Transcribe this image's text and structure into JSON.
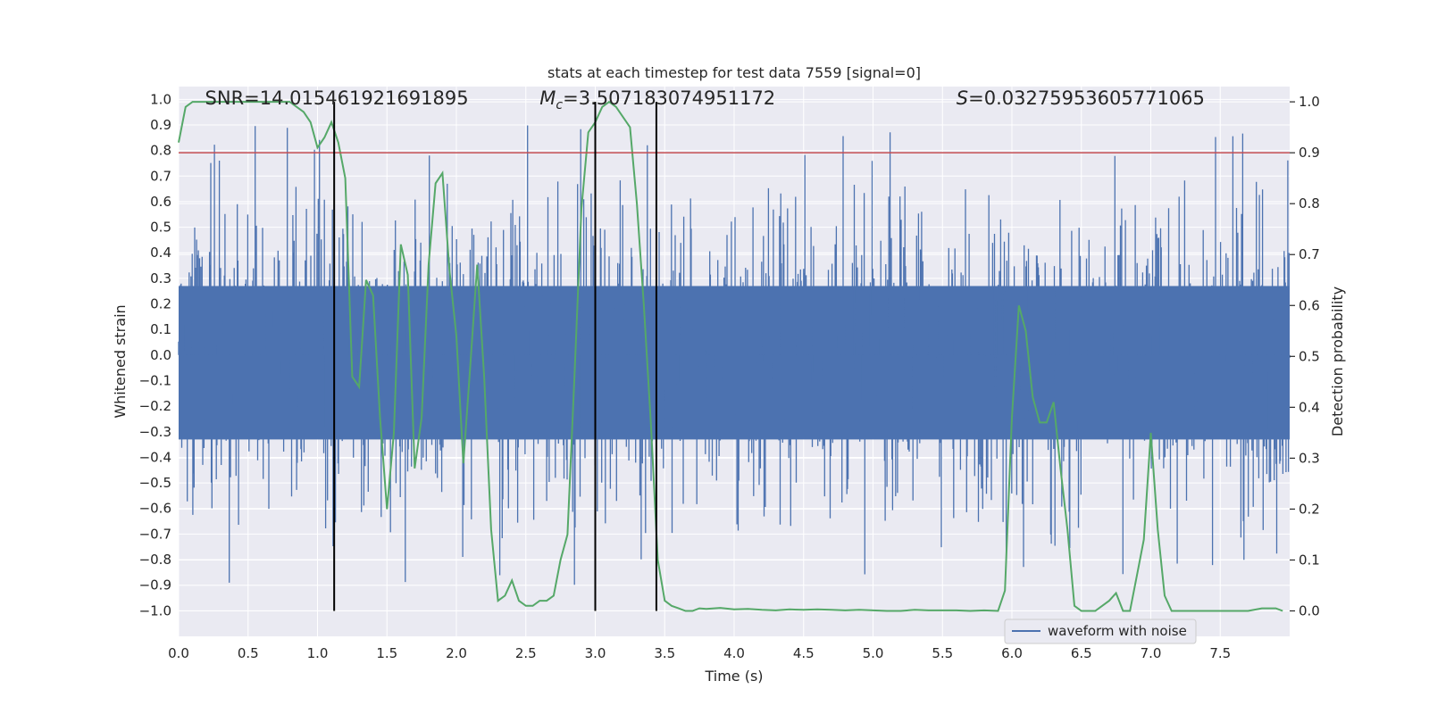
{
  "chart_data": {
    "type": "line",
    "title": "stats at each timestep for test data 7559 [signal=0]",
    "xlabel": "Time (s)",
    "ylabel_left": "Whitened strain",
    "ylabel_right": "Detection probability",
    "xlim": [
      0,
      8.0
    ],
    "ylim_left": [
      -1.1,
      1.05
    ],
    "ylim_right": [
      -0.05,
      1.03
    ],
    "x_ticks": [
      "0.0",
      "0.5",
      "1.0",
      "1.5",
      "2.0",
      "2.5",
      "3.0",
      "3.5",
      "4.0",
      "4.5",
      "5.0",
      "5.5",
      "6.0",
      "6.5",
      "7.0",
      "7.5"
    ],
    "left_ticks": [
      "1.0",
      "0.9",
      "0.8",
      "0.7",
      "0.6",
      "0.5",
      "0.4",
      "0.3",
      "0.2",
      "0.1",
      "0.0",
      "-0.1",
      "-0.2",
      "-0.3",
      "-0.4",
      "-0.5",
      "-0.6",
      "-0.7",
      "-0.8",
      "-0.9",
      "-1.0"
    ],
    "right_ticks": [
      "1.0",
      "0.9",
      "0.8",
      "0.7",
      "0.6",
      "0.5",
      "0.4",
      "0.3",
      "0.2",
      "0.1",
      "0.0"
    ],
    "annotations": {
      "snr": "SNR=14.015461921691895",
      "mc_symbol": "M",
      "mc_sub": "c",
      "mc_value": "=3.507183074951172",
      "s_symbol": "S",
      "s_value": "=0.03275953605771065"
    },
    "legend": {
      "label": "waveform with noise",
      "location": "lower-right"
    },
    "threshold": 0.9,
    "vertical_lines": [
      1.12,
      3.0,
      3.44
    ],
    "series": [
      {
        "name": "waveform with noise",
        "axis": "left",
        "color": "#4c72b0",
        "description": "noise band approx +/-0.4 with spikes up to about +/-0.95"
      },
      {
        "name": "detection probability",
        "axis": "right",
        "color": "#55a868",
        "x": [
          0.0,
          0.05,
          0.1,
          0.15,
          0.2,
          0.25,
          0.3,
          0.35,
          0.4,
          0.45,
          0.5,
          0.55,
          0.6,
          0.65,
          0.7,
          0.75,
          0.8,
          0.85,
          0.9,
          0.95,
          1.0,
          1.05,
          1.1,
          1.15,
          1.2,
          1.25,
          1.3,
          1.35,
          1.4,
          1.45,
          1.5,
          1.55,
          1.6,
          1.65,
          1.7,
          1.75,
          1.8,
          1.85,
          1.9,
          1.95,
          2.0,
          2.05,
          2.1,
          2.15,
          2.2,
          2.25,
          2.3,
          2.35,
          2.4,
          2.45,
          2.5,
          2.55,
          2.6,
          2.65,
          2.7,
          2.75,
          2.8,
          2.85,
          2.9,
          2.95,
          3.0,
          3.05,
          3.1,
          3.15,
          3.2,
          3.25,
          3.3,
          3.35,
          3.4,
          3.45,
          3.5,
          3.55,
          3.6,
          3.65,
          3.7,
          3.75,
          3.8,
          3.9,
          4.0,
          4.1,
          4.2,
          4.3,
          4.4,
          4.5,
          4.6,
          4.7,
          4.8,
          4.9,
          5.0,
          5.1,
          5.2,
          5.3,
          5.4,
          5.5,
          5.6,
          5.7,
          5.8,
          5.9,
          5.95,
          6.0,
          6.05,
          6.1,
          6.15,
          6.2,
          6.25,
          6.3,
          6.35,
          6.4,
          6.45,
          6.5,
          6.55,
          6.6,
          6.65,
          6.7,
          6.75,
          6.8,
          6.85,
          6.9,
          6.95,
          7.0,
          7.05,
          7.1,
          7.15,
          7.2,
          7.3,
          7.4,
          7.5,
          7.6,
          7.7,
          7.8,
          7.9,
          7.95
        ],
        "values": [
          0.92,
          0.99,
          1.0,
          1.0,
          1.0,
          1.0,
          1.0,
          1.0,
          1.0,
          1.0,
          1.0,
          1.0,
          1.0,
          1.0,
          1.0,
          1.0,
          1.0,
          0.99,
          0.98,
          0.96,
          0.91,
          0.93,
          0.96,
          0.92,
          0.85,
          0.46,
          0.44,
          0.65,
          0.62,
          0.38,
          0.2,
          0.35,
          0.72,
          0.66,
          0.28,
          0.38,
          0.68,
          0.84,
          0.86,
          0.67,
          0.54,
          0.29,
          0.48,
          0.68,
          0.46,
          0.16,
          0.02,
          0.03,
          0.06,
          0.02,
          0.01,
          0.01,
          0.02,
          0.02,
          0.03,
          0.1,
          0.15,
          0.46,
          0.79,
          0.94,
          0.96,
          0.99,
          1.0,
          0.99,
          0.97,
          0.95,
          0.8,
          0.6,
          0.37,
          0.1,
          0.02,
          0.01,
          0.005,
          0.0,
          0.0,
          0.005,
          0.004,
          0.006,
          0.003,
          0.004,
          0.002,
          0.001,
          0.003,
          0.002,
          0.003,
          0.002,
          0.001,
          0.002,
          0.001,
          0.0,
          0.0,
          0.002,
          0.001,
          0.001,
          0.001,
          0.0,
          0.001,
          0.0,
          0.04,
          0.38,
          0.6,
          0.55,
          0.42,
          0.37,
          0.37,
          0.41,
          0.28,
          0.16,
          0.01,
          0.0,
          0.0,
          0.0,
          0.01,
          0.02,
          0.035,
          0.0,
          0.0,
          0.07,
          0.14,
          0.35,
          0.16,
          0.03,
          0.0,
          0.0,
          0.0,
          0.0,
          0.0,
          0.0,
          0.0,
          0.005,
          0.005,
          0.0
        ]
      }
    ]
  }
}
